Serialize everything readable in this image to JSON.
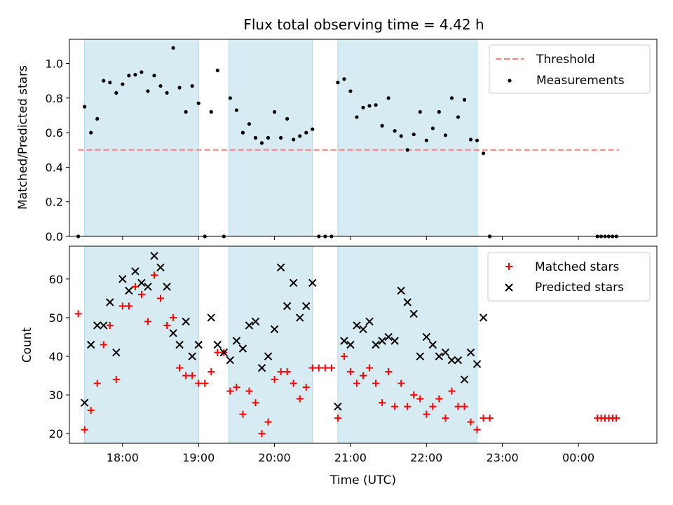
{
  "title": "Flux total observing time = 4.42 h",
  "chart_data": [
    {
      "type": "scatter",
      "panel": "top",
      "ylabel": "Matched/Predicted stars",
      "xlabel": "",
      "ylim": [
        0,
        1.14
      ],
      "xlim": [
        "17:18",
        "01:02"
      ],
      "yticks": [
        "0.0",
        "0.2",
        "0.4",
        "0.6",
        "0.8",
        "1.0"
      ],
      "legend": {
        "placement": "top-right",
        "entries": [
          "Threshold",
          "Measurements"
        ]
      },
      "threshold": {
        "name": "Threshold",
        "y": 0.5,
        "x_start": "17:25",
        "x_end": "00:32",
        "color": "#ff7f7f",
        "style": "dashed"
      },
      "series": [
        {
          "name": "Measurements",
          "color": "#000000",
          "marker": "dot",
          "points": [
            [
              "17:25",
              0.0
            ],
            [
              "17:30",
              0.75
            ],
            [
              "17:35",
              0.6
            ],
            [
              "17:40",
              0.68
            ],
            [
              "17:45",
              0.9
            ],
            [
              "17:50",
              0.89
            ],
            [
              "17:55",
              0.83
            ],
            [
              "18:00",
              0.88
            ],
            [
              "18:05",
              0.93
            ],
            [
              "18:10",
              0.935
            ],
            [
              "18:15",
              0.95
            ],
            [
              "18:20",
              0.84
            ],
            [
              "18:25",
              0.93
            ],
            [
              "18:30",
              0.87
            ],
            [
              "18:35",
              0.83
            ],
            [
              "18:40",
              1.09
            ],
            [
              "18:45",
              0.86
            ],
            [
              "18:50",
              0.72
            ],
            [
              "18:55",
              0.87
            ],
            [
              "19:00",
              0.77
            ],
            [
              "19:05",
              0.0
            ],
            [
              "19:10",
              0.72
            ],
            [
              "19:15",
              0.96
            ],
            [
              "19:20",
              0.0
            ],
            [
              "19:25",
              0.8
            ],
            [
              "19:30",
              0.73
            ],
            [
              "19:35",
              0.6
            ],
            [
              "19:40",
              0.65
            ],
            [
              "19:45",
              0.57
            ],
            [
              "19:50",
              0.54
            ],
            [
              "19:55",
              0.57
            ],
            [
              "20:00",
              0.72
            ],
            [
              "20:05",
              0.57
            ],
            [
              "20:10",
              0.68
            ],
            [
              "20:15",
              0.56
            ],
            [
              "20:20",
              0.58
            ],
            [
              "20:25",
              0.6
            ],
            [
              "20:30",
              0.62
            ],
            [
              "20:35",
              0.0
            ],
            [
              "20:40",
              0.0
            ],
            [
              "20:45",
              0.0
            ],
            [
              "20:50",
              0.89
            ],
            [
              "20:55",
              0.91
            ],
            [
              "21:00",
              0.84
            ],
            [
              "21:05",
              0.69
            ],
            [
              "21:10",
              0.745
            ],
            [
              "21:15",
              0.755
            ],
            [
              "21:20",
              0.76
            ],
            [
              "21:25",
              0.64
            ],
            [
              "21:30",
              0.8
            ],
            [
              "21:35",
              0.61
            ],
            [
              "21:40",
              0.58
            ],
            [
              "21:45",
              0.5
            ],
            [
              "21:50",
              0.59
            ],
            [
              "21:55",
              0.72
            ],
            [
              "22:00",
              0.555
            ],
            [
              "22:05",
              0.625
            ],
            [
              "22:10",
              0.72
            ],
            [
              "22:15",
              0.585
            ],
            [
              "22:20",
              0.8
            ],
            [
              "22:25",
              0.69
            ],
            [
              "22:30",
              0.79
            ],
            [
              "22:35",
              0.56
            ],
            [
              "22:40",
              0.555
            ],
            [
              "22:45",
              0.48
            ],
            [
              "22:50",
              0.0
            ],
            [
              "00:15",
              0.0
            ],
            [
              "00:18",
              0.0
            ],
            [
              "00:21",
              0.0
            ],
            [
              "00:24",
              0.0
            ],
            [
              "00:27",
              0.0
            ],
            [
              "00:30",
              0.0
            ]
          ]
        }
      ],
      "shaded_intervals": [
        [
          "17:30",
          "19:00"
        ],
        [
          "19:24",
          "20:30"
        ],
        [
          "20:50",
          "22:40"
        ]
      ]
    },
    {
      "type": "scatter",
      "panel": "bottom",
      "xlabel": "Time (UTC)",
      "ylabel": "Count",
      "ylim": [
        17.5,
        68.5
      ],
      "xlim": [
        "17:18",
        "01:02"
      ],
      "yticks": [
        "20",
        "30",
        "40",
        "50",
        "60"
      ],
      "xticks": [
        "18:00",
        "19:00",
        "20:00",
        "21:00",
        "22:00",
        "23:00",
        "00:00"
      ],
      "legend": {
        "placement": "top-right",
        "entries": [
          "Matched stars",
          "Predicted stars"
        ]
      },
      "series": [
        {
          "name": "Matched stars",
          "color": "#ff0000",
          "marker": "plus",
          "points": [
            [
              "17:25",
              51
            ],
            [
              "17:30",
              21
            ],
            [
              "17:35",
              26
            ],
            [
              "17:40",
              33
            ],
            [
              "17:45",
              43
            ],
            [
              "17:50",
              48
            ],
            [
              "17:55",
              34
            ],
            [
              "18:00",
              53
            ],
            [
              "18:05",
              53
            ],
            [
              "18:10",
              58
            ],
            [
              "18:15",
              56
            ],
            [
              "18:20",
              49
            ],
            [
              "18:25",
              61
            ],
            [
              "18:30",
              55
            ],
            [
              "18:35",
              48
            ],
            [
              "18:40",
              50
            ],
            [
              "18:45",
              37
            ],
            [
              "18:50",
              35
            ],
            [
              "18:55",
              35
            ],
            [
              "19:00",
              33
            ],
            [
              "19:05",
              33
            ],
            [
              "19:10",
              36
            ],
            [
              "19:15",
              41
            ],
            [
              "19:20",
              41
            ],
            [
              "19:25",
              31
            ],
            [
              "19:30",
              32
            ],
            [
              "19:35",
              25
            ],
            [
              "19:40",
              31
            ],
            [
              "19:45",
              28
            ],
            [
              "19:50",
              20
            ],
            [
              "19:55",
              23
            ],
            [
              "20:00",
              34
            ],
            [
              "20:05",
              36
            ],
            [
              "20:10",
              36
            ],
            [
              "20:15",
              33
            ],
            [
              "20:20",
              29
            ],
            [
              "20:25",
              32
            ],
            [
              "20:30",
              37
            ],
            [
              "20:35",
              37
            ],
            [
              "20:40",
              37
            ],
            [
              "20:45",
              37
            ],
            [
              "20:50",
              24
            ],
            [
              "20:55",
              40
            ],
            [
              "21:00",
              36
            ],
            [
              "21:05",
              33
            ],
            [
              "21:10",
              35
            ],
            [
              "21:15",
              37
            ],
            [
              "21:20",
              33
            ],
            [
              "21:25",
              28
            ],
            [
              "21:30",
              36
            ],
            [
              "21:35",
              27
            ],
            [
              "21:40",
              33
            ],
            [
              "21:45",
              27
            ],
            [
              "21:50",
              30
            ],
            [
              "21:55",
              29
            ],
            [
              "22:00",
              25
            ],
            [
              "22:05",
              27
            ],
            [
              "22:10",
              29
            ],
            [
              "22:15",
              24
            ],
            [
              "22:20",
              31
            ],
            [
              "22:25",
              27
            ],
            [
              "22:30",
              27
            ],
            [
              "22:35",
              23
            ],
            [
              "22:40",
              21
            ],
            [
              "22:45",
              24
            ],
            [
              "22:50",
              24
            ],
            [
              "00:15",
              24
            ],
            [
              "00:18",
              24
            ],
            [
              "00:21",
              24
            ],
            [
              "00:24",
              24
            ],
            [
              "00:27",
              24
            ],
            [
              "00:30",
              24
            ]
          ]
        },
        {
          "name": "Predicted stars",
          "color": "#000000",
          "marker": "x",
          "points": [
            [
              "17:30",
              28
            ],
            [
              "17:35",
              43
            ],
            [
              "17:40",
              48
            ],
            [
              "17:45",
              48
            ],
            [
              "17:50",
              54
            ],
            [
              "17:55",
              41
            ],
            [
              "18:00",
              60
            ],
            [
              "18:05",
              57
            ],
            [
              "18:10",
              62
            ],
            [
              "18:15",
              59
            ],
            [
              "18:20",
              58
            ],
            [
              "18:25",
              66
            ],
            [
              "18:30",
              63
            ],
            [
              "18:35",
              58
            ],
            [
              "18:40",
              46
            ],
            [
              "18:45",
              43
            ],
            [
              "18:50",
              49
            ],
            [
              "18:55",
              40
            ],
            [
              "19:00",
              43
            ],
            [
              "19:10",
              50
            ],
            [
              "19:15",
              43
            ],
            [
              "19:20",
              41
            ],
            [
              "19:25",
              39
            ],
            [
              "19:30",
              44
            ],
            [
              "19:35",
              42
            ],
            [
              "19:40",
              48
            ],
            [
              "19:45",
              49
            ],
            [
              "19:50",
              37
            ],
            [
              "19:55",
              40
            ],
            [
              "20:00",
              47
            ],
            [
              "20:05",
              63
            ],
            [
              "20:10",
              53
            ],
            [
              "20:15",
              59
            ],
            [
              "20:20",
              50
            ],
            [
              "20:25",
              53
            ],
            [
              "20:30",
              59
            ],
            [
              "20:50",
              27
            ],
            [
              "20:55",
              44
            ],
            [
              "21:00",
              43
            ],
            [
              "21:05",
              48
            ],
            [
              "21:10",
              47
            ],
            [
              "21:15",
              49
            ],
            [
              "21:20",
              43
            ],
            [
              "21:25",
              44
            ],
            [
              "21:30",
              45
            ],
            [
              "21:35",
              44
            ],
            [
              "21:40",
              57
            ],
            [
              "21:45",
              54
            ],
            [
              "21:50",
              51
            ],
            [
              "21:55",
              40
            ],
            [
              "22:00",
              45
            ],
            [
              "22:05",
              43
            ],
            [
              "22:10",
              40
            ],
            [
              "22:15",
              41
            ],
            [
              "22:20",
              39
            ],
            [
              "22:25",
              39
            ],
            [
              "22:30",
              34
            ],
            [
              "22:35",
              41
            ],
            [
              "22:40",
              38
            ],
            [
              "22:45",
              50
            ]
          ]
        }
      ],
      "shaded_intervals": [
        [
          "17:30",
          "19:00"
        ],
        [
          "19:24",
          "20:30"
        ],
        [
          "20:50",
          "22:40"
        ]
      ]
    }
  ],
  "colors": {
    "shade_fill": "#add8e6",
    "matched": "#ff0000",
    "predicted": "#000000",
    "threshold": "#ff7f7f"
  }
}
